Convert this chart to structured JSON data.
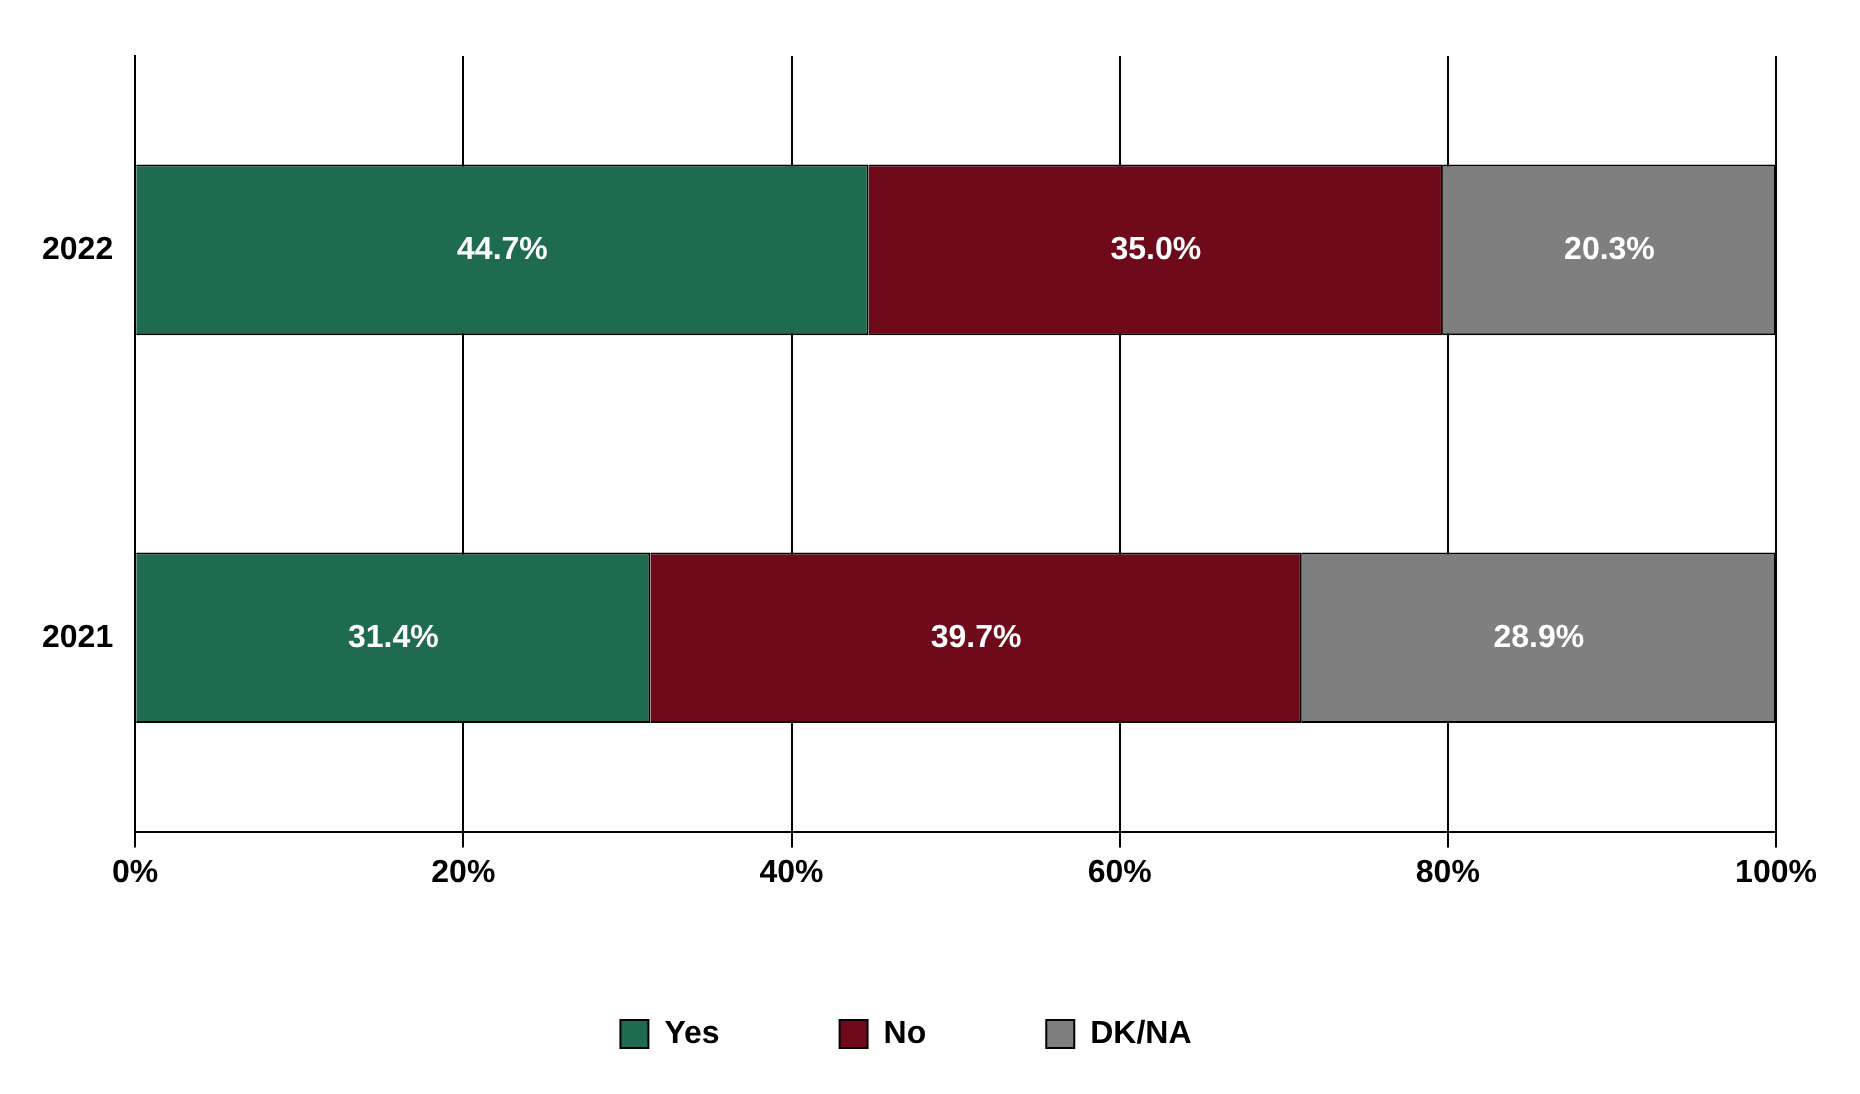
{
  "chart_data": {
    "type": "bar",
    "orientation": "horizontal",
    "stacked": true,
    "categories": [
      "2022",
      "2021"
    ],
    "series": [
      {
        "name": "Yes",
        "color": "#1e6b4f",
        "values": [
          44.7,
          31.4
        ],
        "value_labels": [
          "44.7%",
          "31.4%"
        ]
      },
      {
        "name": "No",
        "color": "#6e0a1a",
        "values": [
          35.0,
          39.7
        ],
        "value_labels": [
          "35.0%",
          "39.7%"
        ]
      },
      {
        "name": "DK/NA",
        "color": "#7f7f7f",
        "values": [
          20.3,
          28.9
        ],
        "value_labels": [
          "20.3%",
          "28.9%"
        ]
      }
    ],
    "xlim": [
      0,
      100
    ],
    "xticks": [
      {
        "value": 0,
        "label": "0%"
      },
      {
        "value": 20,
        "label": "20%"
      },
      {
        "value": 40,
        "label": "40%"
      },
      {
        "value": 60,
        "label": "60%"
      },
      {
        "value": 80,
        "label": "80%"
      },
      {
        "value": 100,
        "label": "100%"
      }
    ],
    "grid": "x",
    "legend": "bottom"
  }
}
